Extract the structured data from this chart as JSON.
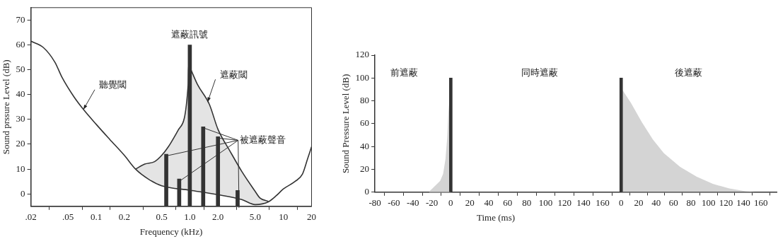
{
  "chart_data": [
    {
      "type": "line",
      "log": "x",
      "xlabel": "Frequency (kHz)",
      "ylabel": "Sound prssure Level (dB)",
      "xlim": [
        0.02,
        20
      ],
      "xticks": [
        {
          "value": 0.02,
          "label": ".02"
        },
        {
          "value": 0.05,
          "label": ".05"
        },
        0.1,
        0.2,
        0.5,
        {
          "value": 1,
          "label": "1.0"
        },
        {
          "value": 2,
          "label": "2.0"
        },
        {
          "value": 5,
          "label": "5.0"
        },
        10,
        20
      ],
      "ylim": [
        -5,
        75
      ],
      "yticks": [
        0,
        10,
        20,
        30,
        40,
        50,
        60,
        70
      ],
      "grid": false,
      "legend": false,
      "marker": "none",
      "series": [
        {
          "color": "#333333",
          "x": [
            0.02,
            0.0271,
            0.0362,
            0.043,
            0.058,
            0.073,
            0.1,
            0.139,
            0.2,
            0.263,
            0.374,
            0.5,
            1.0,
            2.0,
            3.6,
            5.0,
            6.9,
            8.4,
            10,
            13.3,
            16,
            18.1,
            20
          ],
          "values": [
            61.5,
            59,
            53,
            47,
            39,
            34,
            28,
            22,
            15.5,
            10,
            5.6,
            3.3,
            1.5,
            -0.3,
            -2.3,
            -4.3,
            -3.2,
            -0.7,
            2,
            5,
            8,
            14,
            19
          ]
        },
        {
          "color": "#333333",
          "x": [
            0.263,
            0.33,
            0.42,
            0.5,
            0.59,
            0.76,
            0.96,
            0.97,
            1.0,
            1.21,
            1.62,
            2.0,
            2.71,
            3.6,
            5.0,
            5.6,
            6.9
          ],
          "values": [
            10,
            12,
            13,
            15.5,
            19,
            26,
            44,
            52,
            51,
            44,
            36,
            26,
            17,
            9,
            1,
            -1.6,
            -3
          ],
          "lower": [
            10,
            7.3,
            4.8,
            3.3,
            2.8,
            2,
            1.6,
            1.6,
            1.5,
            1,
            0.4,
            -0.3,
            -1.2,
            -2.3,
            -4.3,
            -4.2,
            -3.2
          ],
          "upper": [
            10,
            12,
            13,
            15.5,
            19,
            26,
            44,
            52,
            51,
            44,
            36,
            26,
            17,
            9,
            1,
            -1.6,
            -3
          ]
        },
        {
          "type": "bar",
          "color": "#333333",
          "x": [
            0.56,
            0.77,
            1.0,
            1.39,
            2.0,
            3.24
          ],
          "base": [
            -5,
            -5,
            -5,
            -5,
            -5,
            -5
          ],
          "values": [
            21,
            11,
            65,
            32,
            28,
            6.4
          ]
        }
      ],
      "annotations": [
        {
          "text": "聽覺閾",
          "x": 0.073,
          "y": 34
        },
        {
          "text": "遮蔽訊號",
          "x": 1.0,
          "y": 60
        },
        {
          "text": "遮蔽閾",
          "x": 1.55,
          "y": 37
        },
        {
          "text": "被遮蔽聲音",
          "x": 2.0,
          "y": 23
        }
      ]
    },
    {
      "type": "area",
      "xlabel": "Time (ms)",
      "ylabel": "Sound Pressure Level (dB)",
      "xlim": [
        -80,
        175
      ],
      "xticks": [
        -80,
        -60,
        -40,
        -20,
        0,
        20,
        40,
        60,
        80,
        100,
        120,
        140,
        160
      ],
      "ylim": [
        0,
        120
      ],
      "yticks": [
        0,
        20,
        40,
        60,
        80,
        100,
        120
      ],
      "grid": false,
      "legend": false,
      "marker": "none",
      "series": [
        {
          "color": "#d4d4d4",
          "x": [
            -22.8,
            -19.7,
            -11.2,
            -8.1,
            -5.6,
            -3.75,
            -2.5,
            -1.6,
            0
          ],
          "values": [
            0.6,
            3,
            10,
            16,
            29,
            48,
            70,
            79,
            80
          ]
        },
        {
          "type": "bar",
          "color": "#333333",
          "x": [
            0
          ],
          "values": [
            100
          ]
        }
      ],
      "annotations": [
        "前遮蔽",
        "同時遮蔽"
      ]
    },
    {
      "type": "area",
      "xlim": [
        -5,
        178
      ],
      "xticks": [
        0,
        20,
        40,
        60,
        80,
        100,
        120,
        140,
        160
      ],
      "ylim": [
        0,
        120
      ],
      "yticks": [
        0,
        20,
        40,
        60,
        80,
        100,
        120
      ],
      "tick_labels": "x",
      "grid": false,
      "legend": false,
      "marker": "none",
      "series": [
        {
          "color": "#d4d4d4",
          "x": [
            0,
            1.9,
            11.3,
            23.8,
            36.3,
            48.8,
            67.5,
            86.3,
            105,
            123.8,
            142.5,
            153.4
          ],
          "values": [
            90,
            89,
            78,
            61,
            46,
            34,
            22,
            13.5,
            7,
            3,
            0.6,
            0
          ]
        },
        {
          "type": "bar",
          "color": "#333333",
          "x": [
            0
          ],
          "values": [
            100
          ]
        }
      ],
      "annotations": [
        "後遮蔽"
      ]
    }
  ]
}
